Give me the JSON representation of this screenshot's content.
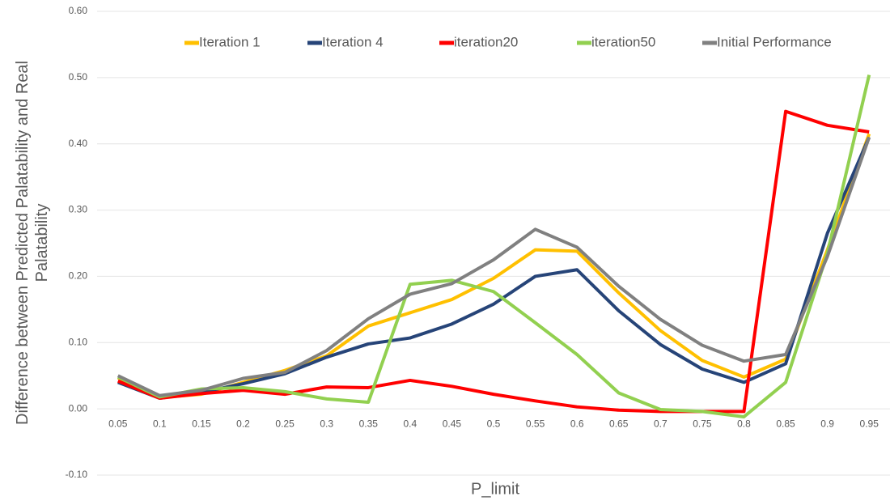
{
  "chart_data": {
    "type": "line",
    "xlabel": "P_limit",
    "ylabel": "Difference between Predicted Palatability and Real Palatability",
    "categories": [
      "0.05",
      "0.1",
      "0.15",
      "0.2",
      "0.25",
      "0.3",
      "0.35",
      "0.4",
      "0.45",
      "0.5",
      "0.55",
      "0.6",
      "0.65",
      "0.7",
      "0.75",
      "0.8",
      "0.85",
      "0.9",
      "0.95"
    ],
    "ylim": [
      -0.1,
      0.6
    ],
    "yticks": [
      {
        "value": -0.1,
        "label": "-0.10"
      },
      {
        "value": 0,
        "label": "0.00"
      },
      {
        "value": 0.1,
        "label": "0.10"
      },
      {
        "value": 0.2,
        "label": "0.20"
      },
      {
        "value": 0.3,
        "label": "0.30"
      },
      {
        "value": 0.4,
        "label": "0.40"
      },
      {
        "value": 0.5,
        "label": "0.50"
      },
      {
        "value": 0.6,
        "label": "0.60"
      }
    ],
    "grid": true,
    "legend": "top",
    "series": [
      {
        "name": "Iteration 1",
        "color": "#ffc000",
        "values": [
          0.047,
          0.017,
          0.022,
          0.04,
          0.058,
          0.08,
          0.125,
          0.145,
          0.165,
          0.197,
          0.24,
          0.238,
          0.175,
          0.118,
          0.073,
          0.048,
          0.075,
          0.24,
          0.415
        ]
      },
      {
        "name": "Iteration 4",
        "color": "#264478",
        "values": [
          0.04,
          0.016,
          0.025,
          0.038,
          0.053,
          0.078,
          0.098,
          0.107,
          0.128,
          0.158,
          0.2,
          0.21,
          0.148,
          0.097,
          0.06,
          0.04,
          0.068,
          0.265,
          0.41
        ]
      },
      {
        "name": "iteration20",
        "color": "#ff0000",
        "values": [
          0.042,
          0.016,
          0.023,
          0.028,
          0.022,
          0.033,
          0.032,
          0.043,
          0.034,
          0.022,
          0.012,
          0.003,
          -0.002,
          -0.004,
          -0.004,
          -0.004,
          0.449,
          0.428,
          0.418
        ]
      },
      {
        "name": "iteration50",
        "color": "#92d050",
        "values": [
          0.048,
          0.018,
          0.03,
          0.032,
          0.026,
          0.015,
          0.01,
          0.188,
          0.194,
          0.177,
          0.13,
          0.082,
          0.024,
          -0.001,
          -0.004,
          -0.012,
          0.04,
          0.235,
          0.504
        ]
      },
      {
        "name": "Initial Performance",
        "color": "#808080",
        "values": [
          0.05,
          0.02,
          0.028,
          0.046,
          0.055,
          0.088,
          0.136,
          0.173,
          0.189,
          0.225,
          0.271,
          0.244,
          0.185,
          0.135,
          0.096,
          0.072,
          0.082,
          0.23,
          0.41
        ]
      }
    ]
  }
}
